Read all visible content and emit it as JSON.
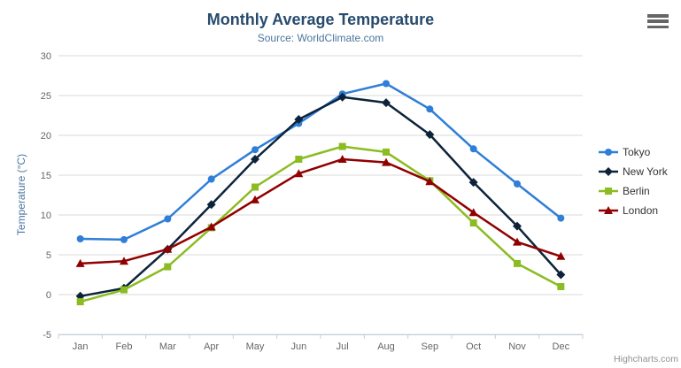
{
  "header": {
    "title": "Monthly Average Temperature",
    "subtitle": "Source: WorldClimate.com"
  },
  "menu": {
    "icon": "hamburger-icon"
  },
  "credits": "Highcharts.com",
  "axis_colors": {
    "title_color": "#274b6d",
    "subtitle_color": "#4d759e",
    "axis_title_color": "#4d759e",
    "label_color": "#666666",
    "grid_color": "#d8d8d8",
    "axis_line_color": "#c0d0e0"
  },
  "chart_data": {
    "type": "line",
    "title": "Monthly Average Temperature",
    "subtitle": "Source: WorldClimate.com",
    "xlabel": "",
    "ylabel": "Temperature (°C)",
    "ylim": [
      -5,
      30
    ],
    "tick_interval": 5,
    "grid": true,
    "legend_position": "right",
    "categories": [
      "Jan",
      "Feb",
      "Mar",
      "Apr",
      "May",
      "Jun",
      "Jul",
      "Aug",
      "Sep",
      "Oct",
      "Nov",
      "Dec"
    ],
    "series": [
      {
        "name": "Tokyo",
        "color": "#2f7ed8",
        "marker": "circle",
        "values": [
          7.0,
          6.9,
          9.5,
          14.5,
          18.2,
          21.5,
          25.2,
          26.5,
          23.3,
          18.3,
          13.9,
          9.6
        ]
      },
      {
        "name": "New York",
        "color": "#0d233a",
        "marker": "diamond",
        "values": [
          -0.2,
          0.8,
          5.7,
          11.3,
          17.0,
          22.0,
          24.8,
          24.1,
          20.1,
          14.1,
          8.6,
          2.5
        ]
      },
      {
        "name": "Berlin",
        "color": "#8bbc21",
        "marker": "square",
        "values": [
          -0.9,
          0.6,
          3.5,
          8.4,
          13.5,
          17.0,
          18.6,
          17.9,
          14.3,
          9.0,
          3.9,
          1.0
        ]
      },
      {
        "name": "London",
        "color": "#910000",
        "marker": "triangle",
        "values": [
          3.9,
          4.2,
          5.7,
          8.5,
          11.9,
          15.2,
          17.0,
          16.6,
          14.2,
          10.3,
          6.6,
          4.8
        ]
      }
    ]
  }
}
